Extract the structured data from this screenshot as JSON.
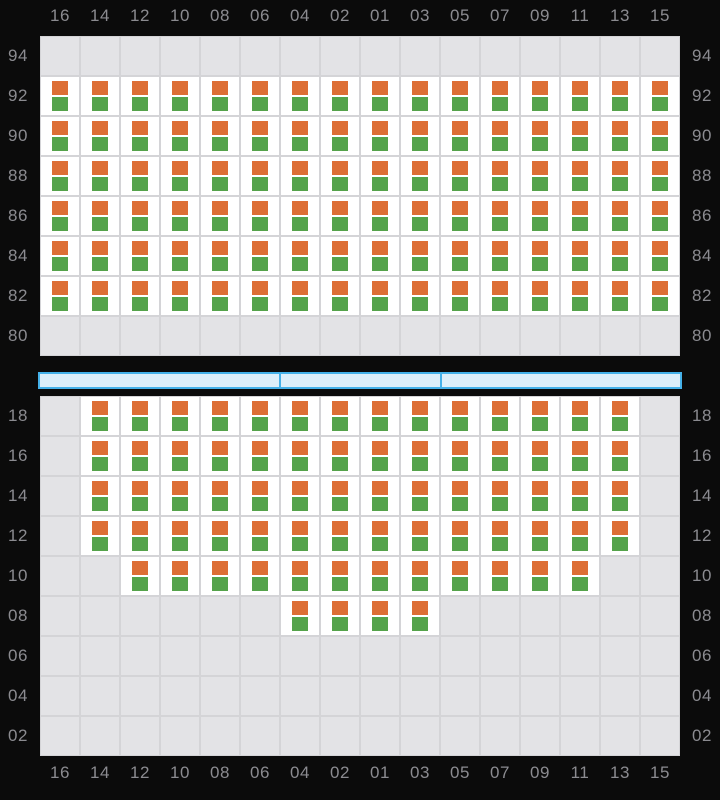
{
  "bay_plan": {
    "row_labels": [
      "16",
      "14",
      "12",
      "10",
      "08",
      "06",
      "04",
      "02",
      "01",
      "03",
      "05",
      "07",
      "09",
      "11",
      "13",
      "15"
    ],
    "deck": {
      "tiers": [
        {
          "label": "94",
          "occupied": [
            0,
            0,
            0,
            0,
            0,
            0,
            0,
            0,
            0,
            0,
            0,
            0,
            0,
            0,
            0,
            0
          ]
        },
        {
          "label": "92",
          "occupied": [
            1,
            1,
            1,
            1,
            1,
            1,
            1,
            1,
            1,
            1,
            1,
            1,
            1,
            1,
            1,
            1
          ]
        },
        {
          "label": "90",
          "occupied": [
            1,
            1,
            1,
            1,
            1,
            1,
            1,
            1,
            1,
            1,
            1,
            1,
            1,
            1,
            1,
            1
          ]
        },
        {
          "label": "88",
          "occupied": [
            1,
            1,
            1,
            1,
            1,
            1,
            1,
            1,
            1,
            1,
            1,
            1,
            1,
            1,
            1,
            1
          ]
        },
        {
          "label": "86",
          "occupied": [
            1,
            1,
            1,
            1,
            1,
            1,
            1,
            1,
            1,
            1,
            1,
            1,
            1,
            1,
            1,
            1
          ]
        },
        {
          "label": "84",
          "occupied": [
            1,
            1,
            1,
            1,
            1,
            1,
            1,
            1,
            1,
            1,
            1,
            1,
            1,
            1,
            1,
            1
          ]
        },
        {
          "label": "82",
          "occupied": [
            1,
            1,
            1,
            1,
            1,
            1,
            1,
            1,
            1,
            1,
            1,
            1,
            1,
            1,
            1,
            1
          ]
        },
        {
          "label": "80",
          "occupied": [
            0,
            0,
            0,
            0,
            0,
            0,
            0,
            0,
            0,
            0,
            0,
            0,
            0,
            0,
            0,
            0
          ]
        }
      ]
    },
    "hold": {
      "tiers": [
        {
          "label": "18",
          "occupied": [
            0,
            1,
            1,
            1,
            1,
            1,
            1,
            1,
            1,
            1,
            1,
            1,
            1,
            1,
            1,
            0
          ]
        },
        {
          "label": "16",
          "occupied": [
            0,
            1,
            1,
            1,
            1,
            1,
            1,
            1,
            1,
            1,
            1,
            1,
            1,
            1,
            1,
            0
          ]
        },
        {
          "label": "14",
          "occupied": [
            0,
            1,
            1,
            1,
            1,
            1,
            1,
            1,
            1,
            1,
            1,
            1,
            1,
            1,
            1,
            0
          ]
        },
        {
          "label": "12",
          "occupied": [
            0,
            1,
            1,
            1,
            1,
            1,
            1,
            1,
            1,
            1,
            1,
            1,
            1,
            1,
            1,
            0
          ]
        },
        {
          "label": "10",
          "occupied": [
            0,
            0,
            1,
            1,
            1,
            1,
            1,
            1,
            1,
            1,
            1,
            1,
            1,
            1,
            0,
            0
          ]
        },
        {
          "label": "08",
          "occupied": [
            0,
            0,
            0,
            0,
            0,
            0,
            1,
            1,
            1,
            1,
            0,
            0,
            0,
            0,
            0,
            0
          ]
        },
        {
          "label": "06",
          "occupied": [
            0,
            0,
            0,
            0,
            0,
            0,
            0,
            0,
            0,
            0,
            0,
            0,
            0,
            0,
            0,
            0
          ]
        },
        {
          "label": "04",
          "occupied": [
            0,
            0,
            0,
            0,
            0,
            0,
            0,
            0,
            0,
            0,
            0,
            0,
            0,
            0,
            0,
            0
          ]
        },
        {
          "label": "02",
          "occupied": [
            0,
            0,
            0,
            0,
            0,
            0,
            0,
            0,
            0,
            0,
            0,
            0,
            0,
            0,
            0,
            0
          ]
        }
      ]
    },
    "hatch_covers": {
      "segments": [
        {
          "span": 6
        },
        {
          "span": 4
        },
        {
          "span": 6
        }
      ]
    }
  },
  "colors": {
    "background": "#0b0b0b",
    "panel_grid": "#d4d4d7",
    "cell_empty": "#e3e3e6",
    "cell_occupied": "#ffffff",
    "container_orange": "#dd6e35",
    "container_green": "#55a34b",
    "hatch_fill": "#ddeffa",
    "hatch_border": "#45b1e9",
    "label_text": "#8b8b90"
  }
}
